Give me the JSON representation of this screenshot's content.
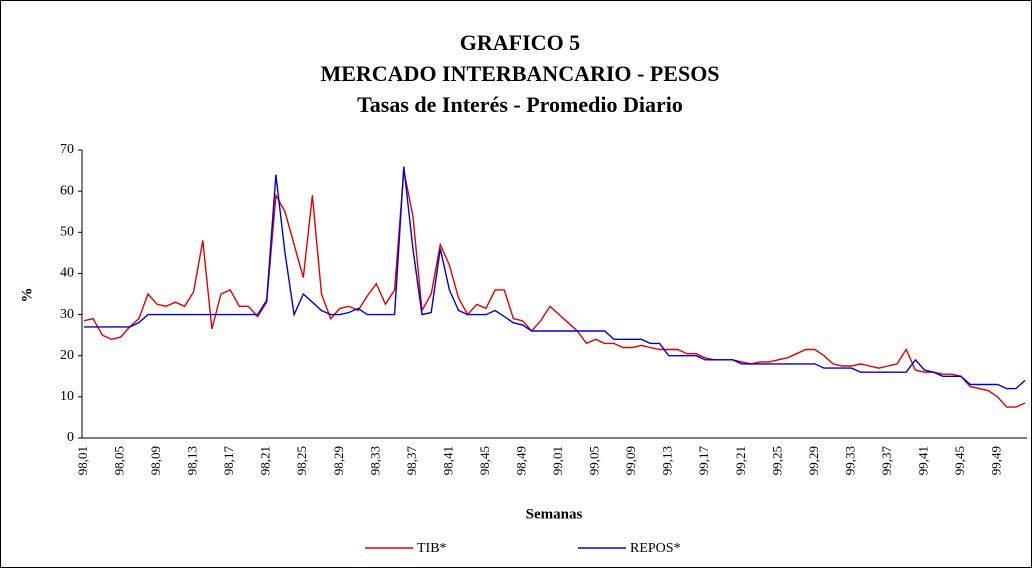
{
  "chart_data": {
    "type": "line",
    "title": "GRAFICO 5",
    "subtitle": "MERCADO INTERBANCARIO - PESOS",
    "subtitle2": "Tasas de Interés - Promedio Diario",
    "ylabel": "%",
    "xlabel": "Semanas",
    "categories": [
      "98,01",
      null,
      null,
      null,
      "98,05",
      null,
      null,
      null,
      "98,09",
      null,
      null,
      null,
      "98,13",
      null,
      null,
      null,
      "98,17",
      null,
      null,
      null,
      "98,21",
      null,
      null,
      null,
      "98,25",
      null,
      null,
      null,
      "98,29",
      null,
      null,
      null,
      "98,33",
      null,
      null,
      null,
      "98,37",
      null,
      null,
      null,
      "98,41",
      null,
      null,
      null,
      "98,45",
      null,
      null,
      null,
      "98,49",
      null,
      null,
      null,
      "99,01",
      null,
      null,
      null,
      "99,05",
      null,
      null,
      null,
      "99,09",
      null,
      null,
      null,
      "99,13",
      null,
      null,
      null,
      "99,17",
      null,
      null,
      null,
      "99,21",
      null,
      null,
      null,
      "99,25",
      null,
      null,
      null,
      "99,29",
      null,
      null,
      null,
      "99,33",
      null,
      null,
      null,
      "99,37",
      null,
      null,
      null,
      "99,41",
      null,
      null,
      null,
      "99,45",
      null,
      null,
      null,
      "99,49",
      null,
      null,
      null
    ],
    "series": [
      {
        "name": "TIB*",
        "color": "#e00000",
        "values": [
          28.5,
          29,
          25,
          24,
          24.5,
          27,
          29,
          35,
          32.5,
          32,
          33,
          32,
          35.5,
          48,
          26.5,
          35,
          36,
          32,
          32,
          29.5,
          33,
          59,
          55,
          47,
          39,
          59,
          35,
          29,
          31.5,
          32,
          31,
          34.5,
          37.5,
          32.5,
          36,
          65,
          54,
          31,
          35,
          47,
          42,
          34,
          30,
          32.5,
          31.5,
          36,
          36,
          29,
          28.5,
          26,
          28.5,
          32,
          30,
          28,
          26,
          23,
          24,
          23,
          23,
          22,
          22,
          22.5,
          22,
          21.5,
          21.5,
          21.5,
          20.5,
          20.5,
          19.5,
          19,
          19,
          19,
          18.5,
          18,
          18.5,
          18.5,
          19,
          19.5,
          20.5,
          21.5,
          21.5,
          20,
          18,
          17.5,
          17.5,
          18,
          17.5,
          17,
          17.5,
          18,
          21.5,
          16.5,
          16,
          16,
          15.5,
          15.5,
          15,
          12.5,
          12,
          11.5,
          10,
          7.5,
          7.5,
          8.5
        ]
      },
      {
        "name": "REPOS*",
        "color": "#0000d0",
        "values": [
          27,
          27,
          27,
          27,
          27,
          27,
          28,
          30,
          30,
          30,
          30,
          30,
          30,
          30,
          30,
          30,
          30,
          30,
          30,
          30,
          33.5,
          64,
          45,
          30,
          35,
          33,
          31,
          30,
          30,
          30.5,
          31.5,
          30,
          30,
          30,
          30,
          66,
          46,
          30,
          30.5,
          46,
          36,
          31,
          30,
          30,
          30,
          31,
          29.5,
          28,
          27.5,
          26,
          26,
          26,
          26,
          26,
          26,
          26,
          26,
          26,
          24,
          24,
          24,
          24,
          23,
          23,
          20,
          20,
          20,
          20,
          19,
          19,
          19,
          19,
          18,
          18,
          18,
          18,
          18,
          18,
          18,
          18,
          18,
          17,
          17,
          17,
          17,
          16,
          16,
          16,
          16,
          16,
          16,
          19,
          16.5,
          16,
          15,
          15,
          15,
          13,
          13,
          13,
          13,
          12,
          12,
          14
        ]
      }
    ],
    "ylim": [
      0,
      70
    ],
    "yticks": [
      0,
      10,
      20,
      30,
      40,
      50,
      60,
      70
    ],
    "grid": false
  }
}
